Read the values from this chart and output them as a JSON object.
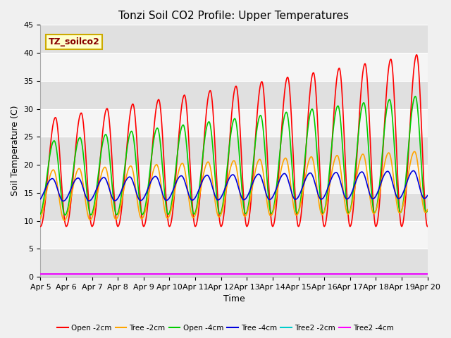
{
  "title": "Tonzi Soil CO2 Profile: Upper Temperatures",
  "xlabel": "Time",
  "ylabel": "Soil Temperature (C)",
  "ylim": [
    0,
    45
  ],
  "x_tick_labels": [
    "Apr 5",
    "Apr 6",
    "Apr 7",
    "Apr 8",
    "Apr 9",
    "Apr 10",
    "Apr 11",
    "Apr 12",
    "Apr 13",
    "Apr 14",
    "Apr 15",
    "Apr 16",
    "Apr 17",
    "Apr 18",
    "Apr 19",
    "Apr 20"
  ],
  "fig_bg": "#f0f0f0",
  "plot_bg": "#e8e8e8",
  "band_light": "#f5f5f5",
  "band_dark": "#e0e0e0",
  "series": [
    {
      "label": "Open -2cm",
      "color": "#ff0000",
      "amp_s": 9.5,
      "amp_e": 15.5,
      "mean_s": 18.5,
      "mean_e": 24.5,
      "phase_off": 0.0
    },
    {
      "label": "Tree -2cm",
      "color": "#ffa500",
      "amp_s": 4.5,
      "amp_e": 5.5,
      "mean_s": 14.5,
      "mean_e": 17.0,
      "phase_off": 0.08
    },
    {
      "label": "Open -4cm",
      "color": "#00cc00",
      "amp_s": 6.5,
      "amp_e": 10.5,
      "mean_s": 17.5,
      "mean_e": 22.0,
      "phase_off": 0.05
    },
    {
      "label": "Tree -4cm",
      "color": "#0000dd",
      "amp_s": 2.0,
      "amp_e": 2.5,
      "mean_s": 15.5,
      "mean_e": 16.5,
      "phase_off": 0.12
    },
    {
      "label": "Tree2 -2cm",
      "color": "#00cccc",
      "amp_s": 0.0,
      "amp_e": 0.0,
      "mean_s": 0.5,
      "mean_e": 0.5,
      "phase_off": 0.0
    },
    {
      "label": "Tree2 -4cm",
      "color": "#ff00ff",
      "amp_s": 0.0,
      "amp_e": 0.0,
      "mean_s": 0.5,
      "mean_e": 0.5,
      "phase_off": 0.0
    }
  ],
  "annotation": {
    "text": "TZ_soilco2",
    "facecolor": "#ffffcc",
    "edgecolor": "#ccaa00",
    "fontsize": 9,
    "color": "#880000"
  },
  "title_fontsize": 11,
  "axis_fontsize": 9,
  "tick_fontsize": 8
}
